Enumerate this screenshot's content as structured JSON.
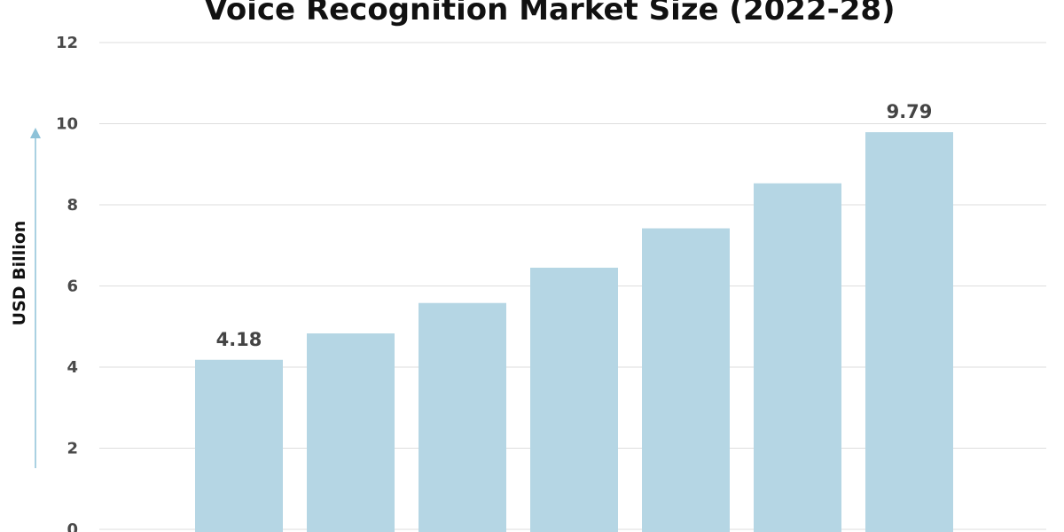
{
  "chart_data": {
    "type": "bar",
    "title": "Voice Recognition Market Size (2022-28)",
    "ylabel": "USD Billion",
    "xlabel": "",
    "categories": [
      "",
      "",
      "",
      "",
      "",
      "",
      ""
    ],
    "values": [
      4.18,
      4.83,
      5.58,
      6.45,
      7.42,
      8.53,
      9.79
    ],
    "data_labels": [
      "4.18",
      "",
      "",
      "",
      "",
      "",
      "9.79"
    ],
    "ylim": [
      0,
      12
    ],
    "yticks": [
      0,
      2,
      4,
      6,
      8,
      10,
      12
    ],
    "ytick_labels": [
      "0",
      "2",
      "4",
      "6",
      "8",
      "10",
      "12"
    ],
    "grid": true,
    "legend": "none",
    "colors": {
      "bar": "#b5d6e4",
      "grid": "#dedede",
      "axis_arrow": "#8ec2d8"
    }
  }
}
